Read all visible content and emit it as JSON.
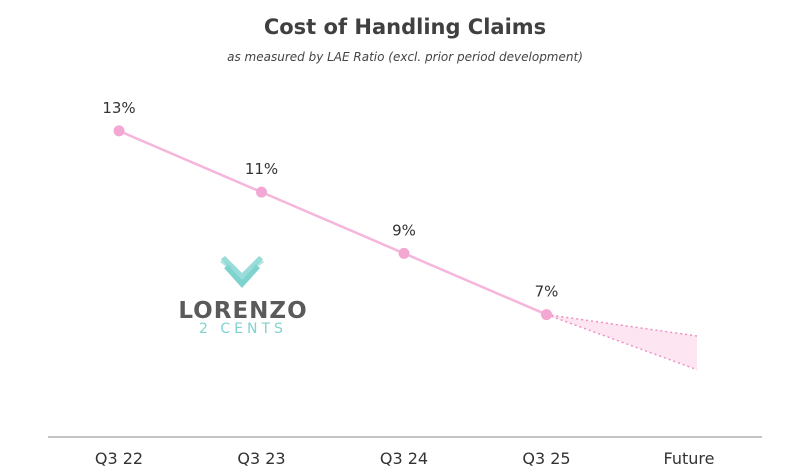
{
  "chart_data": {
    "type": "line",
    "title": "Cost of Handling Claims",
    "subtitle": "as measured by LAE Ratio (excl. prior period development)",
    "categories": [
      "Q3 22",
      "Q3 23",
      "Q3 24",
      "Q3 25",
      "Future"
    ],
    "series": [
      {
        "values": [
          13,
          11,
          9,
          7,
          null
        ]
      }
    ],
    "data_labels": [
      "13%",
      "11%",
      "9%",
      "7%"
    ],
    "projection": {
      "from": "Q3 25",
      "to": "Future",
      "upper": 6.3,
      "lower": 5.2
    },
    "ylim": [
      3,
      14.5
    ],
    "xlabel": "",
    "ylabel": "",
    "grid": false,
    "colors": {
      "line": "#f6b6dc",
      "point": "#f3a8d4",
      "projection_fill": "#fde6f2",
      "projection_line": "#ef8fc6",
      "axis": "#888888"
    }
  },
  "logo": {
    "name": "LORENZO",
    "tagline": "2 CENTS",
    "icon": "wing-chevron-icon",
    "colors": {
      "icon": "#7fd3cf",
      "text": "#5a5a5a"
    }
  }
}
